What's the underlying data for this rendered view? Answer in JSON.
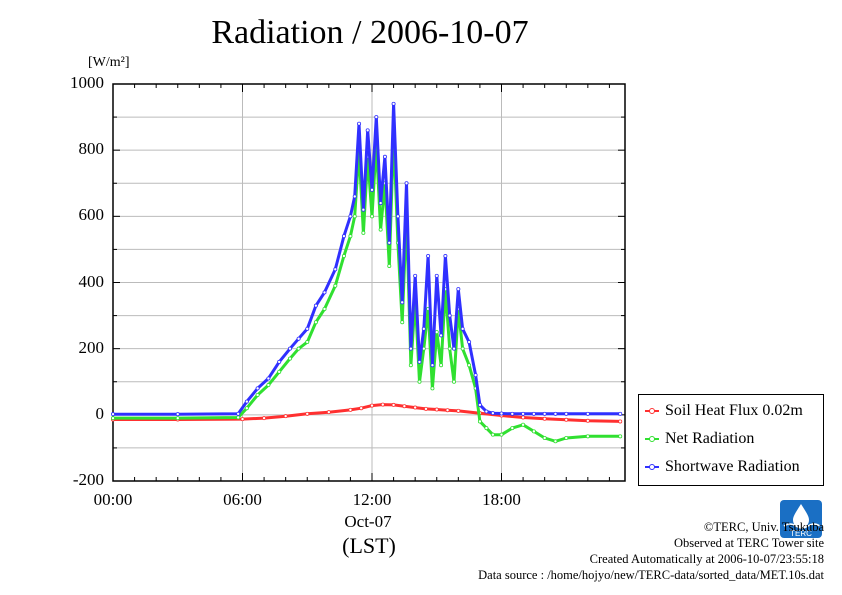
{
  "chart_data": {
    "type": "line",
    "title": "Radiation / 2006-10-07",
    "ylabel_unit": "[W/m²]",
    "ylim": [
      -200,
      1000
    ],
    "yticks": [
      "1000",
      "800",
      "600",
      "400",
      "200",
      "0",
      "-200"
    ],
    "xlim_hours": [
      0,
      23.5
    ],
    "xticks": [
      "00:00",
      "06:00",
      "12:00",
      "18:00"
    ],
    "x_sublabel": "Oct-07",
    "xlabel": "(LST)",
    "legend_position": "bottom-right outside",
    "series": [
      {
        "name": "Soil Heat Flux 0.02m",
        "color": "#ff3030",
        "x": [
          0,
          3,
          6,
          7,
          8,
          9,
          10,
          11,
          11.5,
          12,
          12.5,
          13,
          13.5,
          14,
          14.5,
          15,
          15.5,
          16,
          17,
          18,
          19,
          20,
          21,
          22,
          23.5
        ],
        "values": [
          -14,
          -14,
          -13,
          -10,
          -4,
          3,
          8,
          15,
          20,
          28,
          31,
          30,
          26,
          22,
          18,
          16,
          14,
          12,
          5,
          -2,
          -8,
          -12,
          -15,
          -18,
          -20
        ]
      },
      {
        "name": "Net Radiation",
        "color": "#30e030",
        "x": [
          0,
          3,
          5.8,
          6.2,
          6.7,
          7.2,
          7.7,
          8.2,
          8.6,
          9,
          9.4,
          9.8,
          10.3,
          10.7,
          11,
          11.2,
          11.4,
          11.6,
          11.8,
          12,
          12.2,
          12.4,
          12.6,
          12.8,
          13,
          13.2,
          13.4,
          13.6,
          13.8,
          14,
          14.2,
          14.4,
          14.6,
          14.8,
          15,
          15.2,
          15.4,
          15.6,
          15.8,
          16,
          16.2,
          16.5,
          16.8,
          17,
          17.3,
          17.6,
          18,
          18.5,
          19,
          19.5,
          20,
          20.5,
          21,
          22,
          23.5
        ],
        "values": [
          -10,
          -10,
          -8,
          20,
          60,
          90,
          130,
          170,
          200,
          220,
          280,
          320,
          390,
          480,
          540,
          600,
          800,
          550,
          780,
          600,
          820,
          560,
          700,
          450,
          850,
          520,
          280,
          600,
          150,
          350,
          100,
          200,
          320,
          80,
          250,
          150,
          380,
          200,
          100,
          320,
          200,
          150,
          80,
          -20,
          -40,
          -60,
          -60,
          -40,
          -30,
          -50,
          -70,
          -80,
          -70,
          -65,
          -65
        ]
      },
      {
        "name": "Shortwave Radiation",
        "color": "#3030ff",
        "x": [
          0,
          3,
          5.8,
          6.2,
          6.7,
          7.2,
          7.7,
          8.2,
          8.6,
          9,
          9.4,
          9.8,
          10.3,
          10.7,
          11,
          11.2,
          11.4,
          11.6,
          11.8,
          12,
          12.2,
          12.4,
          12.6,
          12.8,
          13,
          13.2,
          13.4,
          13.6,
          13.8,
          14,
          14.2,
          14.4,
          14.6,
          14.8,
          15,
          15.2,
          15.4,
          15.6,
          15.8,
          16,
          16.2,
          16.5,
          16.8,
          17,
          17.3,
          17.6,
          18,
          18.5,
          19,
          19.5,
          20,
          20.5,
          21,
          22,
          23.5
        ],
        "values": [
          2,
          2,
          3,
          40,
          80,
          110,
          160,
          200,
          230,
          260,
          330,
          370,
          440,
          540,
          600,
          660,
          880,
          620,
          860,
          680,
          900,
          640,
          780,
          520,
          940,
          600,
          340,
          700,
          200,
          420,
          160,
          260,
          480,
          150,
          420,
          240,
          480,
          300,
          200,
          380,
          260,
          220,
          120,
          30,
          10,
          5,
          4,
          3,
          3,
          3,
          3,
          3,
          3,
          3,
          3
        ]
      }
    ]
  },
  "credits": {
    "org": "©TERC, Univ. Tsukuba",
    "site": "Observed at TERC Tower site",
    "created": "Created Automatically at 2006-10-07/23:55:18",
    "source": "Data source : /home/hojyo/new/TERC-data/sorted_data/MET.10s.dat"
  },
  "logo": {
    "text": "TERC",
    "color": "#1a6fc4"
  }
}
